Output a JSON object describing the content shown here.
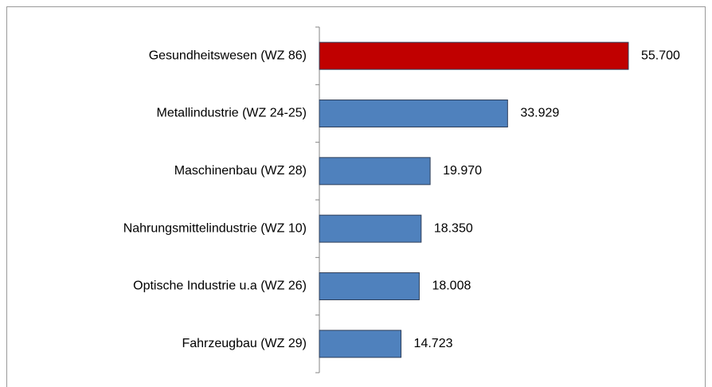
{
  "chart_data": {
    "type": "bar",
    "orientation": "horizontal",
    "categories": [
      "Gesundheitswesen  (WZ 86)",
      "Metallindustrie  (WZ 24-25)",
      "Maschinenbau (WZ 28)",
      "Nahrungsmittelindustrie  (WZ 10)",
      "Optische Industrie  u.a (WZ 26)",
      "Fahrzeugbau (WZ 29)"
    ],
    "values": [
      55700,
      33929,
      19970,
      18350,
      18008,
      14723
    ],
    "value_labels": [
      "55.700",
      "33.929",
      "19.970",
      "18.350",
      "18.008",
      "14.723"
    ],
    "colors": [
      "#c00000",
      "#4f81bd",
      "#4f81bd",
      "#4f81bd",
      "#4f81bd",
      "#4f81bd"
    ]
  }
}
